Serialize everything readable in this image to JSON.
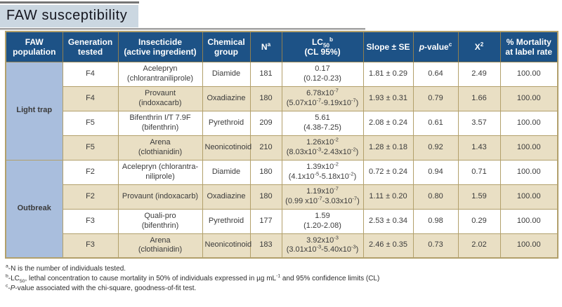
{
  "title": "FAW susceptibility",
  "colors": {
    "title_bg": "#cbd7e1",
    "header_bg": "#1d5286",
    "group_cell_bg": "#a9bedd",
    "row_alt_bg": "#e9dfc4",
    "grid_border": "#b2a06b"
  },
  "table": {
    "headers": [
      "FAW\npopulation",
      "Generation\ntested",
      "Insecticide\n(active ingredient)",
      "Chemical\ngroup",
      "N^{a}",
      "LC_{50}^{b}\n(CL 95%)",
      "Slope ± SE",
      "*p*-value^{c}",
      "X^{2}",
      "% Mortality\nat label rate"
    ],
    "groups": [
      {
        "label": "Light trap"
      },
      {
        "label": "Outbreak"
      }
    ],
    "rows": [
      {
        "generation": "F4",
        "insecticide": "Acelepryn\n(chlorantraniliprole)",
        "chemical_group": "Diamide",
        "n": "181",
        "lc50": "0.17\n(0.12-0.23)",
        "slope_se": "1.81 ± 0.29",
        "p_value": "0.64",
        "chi_square": "2.49",
        "mortality": "100.00"
      },
      {
        "generation": "F4",
        "insecticide": "Provaunt\n(indoxacarb)",
        "chemical_group": "Oxadiazine",
        "n": "180",
        "lc50": "6.78x10^{-7}\n(5.07x10^{-7}-9.19x10^{-7})",
        "slope_se": "1.93 ± 0.31",
        "p_value": "0.79",
        "chi_square": "1.66",
        "mortality": "100.00"
      },
      {
        "generation": "F5",
        "insecticide": "Bifenthrin I/T 7.9F\n(bifenthrin)",
        "chemical_group": "Pyrethroid",
        "n": "209",
        "lc50": "5.61\n(4.38-7.25)",
        "slope_se": "2.08 ± 0.24",
        "p_value": "0.61",
        "chi_square": "3.57",
        "mortality": "100.00"
      },
      {
        "generation": "F5",
        "insecticide": "Arena\n(clothianidin)",
        "chemical_group": "Neonicotinoid",
        "n": "210",
        "lc50": "1.26x10^{-2}\n(8.03x10^{-3}-2.43x10^{-2})",
        "slope_se": "1.28 ± 0.18",
        "p_value": "0.92",
        "chi_square": "1.43",
        "mortality": "100.00"
      },
      {
        "generation": "F2",
        "insecticide": "Acelepryn (chlorantra-\nniliprole)",
        "chemical_group": "Diamide",
        "n": "180",
        "lc50": "1.39x10^{-2}\n(4.1x10^{-5}-5.18x10^{-2})",
        "slope_se": "0.72 ± 0.24",
        "p_value": "0.94",
        "chi_square": "0.71",
        "mortality": "100.00"
      },
      {
        "generation": "F2",
        "insecticide": "Provaunt (indoxacarb)",
        "chemical_group": "Oxadiazine",
        "n": "180",
        "lc50": "1.19x10^{-7}\n(0.99 x10^{-7}-3.03x10^{-7})",
        "slope_se": "1.11 ± 0.20",
        "p_value": "0.80",
        "chi_square": "1.59",
        "mortality": "100.00"
      },
      {
        "generation": "F3",
        "insecticide": "Quali-pro\n(bifenthrin)",
        "chemical_group": "Pyrethroid",
        "n": "177",
        "lc50": "1.59\n(1.20-2.08)",
        "slope_se": "2.53 ± 0.34",
        "p_value": "0.98",
        "chi_square": "0.29",
        "mortality": "100.00"
      },
      {
        "generation": "F3",
        "insecticide": "Arena\n(clothianidin)",
        "chemical_group": "Neonicotinoid",
        "n": "183",
        "lc50": "3.92x10^{-3}\n(3.01x10^{-3}-5.40x10^{-3})",
        "slope_se": "2.46 ± 0.35",
        "p_value": "0.73",
        "chi_square": "2.02",
        "mortality": "100.00"
      }
    ]
  },
  "footnotes": [
    "^{a}-N is the number of individuals tested.",
    "^{b}-LC_{50}, lethal concentration to cause mortality in 50% of individuals expressed in µg mL^{-1} and 95% confidence limits (CL)",
    "^{c}-*P*-value associated with the chi-square, goodness-of-fit test."
  ]
}
